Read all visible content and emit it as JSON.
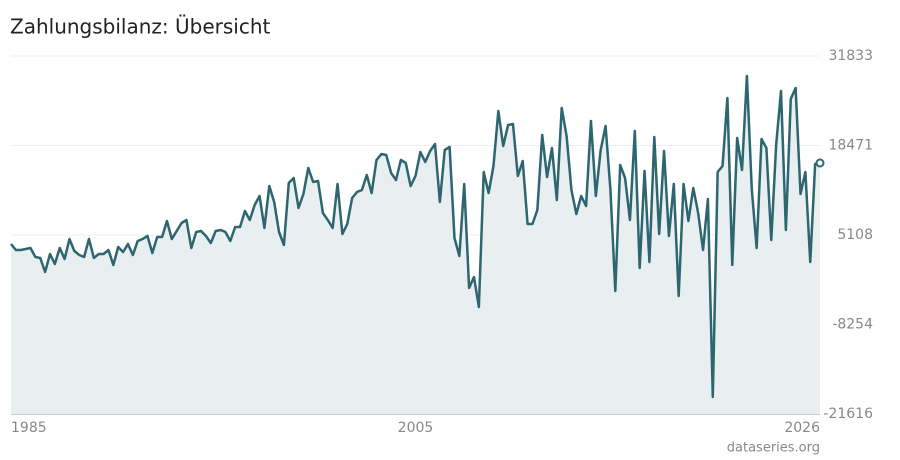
{
  "chart_data": {
    "type": "area",
    "title": "Zahlungsbilanz: Übersicht",
    "source": "dataseries.org",
    "color": "#2d6670",
    "fill": "#e9eff1",
    "grid": true,
    "ylim": [
      -21616,
      31833
    ],
    "yticks": [
      -21616,
      -8254,
      5108,
      18471,
      31833
    ],
    "categories": [
      "1985",
      null,
      null,
      null,
      null,
      null,
      null,
      null,
      null,
      null,
      null,
      null,
      null,
      null,
      null,
      null,
      null,
      null,
      null,
      null,
      null,
      null,
      null,
      null,
      null,
      null,
      null,
      null,
      null,
      null,
      null,
      null,
      null,
      null,
      null,
      null,
      null,
      null,
      null,
      null,
      null,
      null,
      null,
      null,
      null,
      null,
      null,
      null,
      null,
      null,
      null,
      null,
      null,
      null,
      null,
      null,
      null,
      null,
      null,
      null,
      null,
      null,
      null,
      null,
      null,
      null,
      null,
      null,
      null,
      null,
      null,
      null,
      null,
      null,
      null,
      null,
      null,
      null,
      null,
      null,
      null,
      null,
      null,
      "2005",
      null,
      null,
      null,
      null,
      null,
      null,
      null,
      null,
      null,
      null,
      null,
      null,
      null,
      null,
      null,
      null,
      null,
      null,
      null,
      null,
      null,
      null,
      null,
      null,
      null,
      null,
      null,
      null,
      null,
      null,
      null,
      null,
      null,
      null,
      null,
      null,
      null,
      null,
      null,
      null,
      null,
      null,
      null,
      null,
      null,
      null,
      null,
      null,
      null,
      null,
      null,
      null,
      null,
      null,
      null,
      null,
      null,
      null,
      null,
      null,
      null,
      null,
      null,
      null,
      null,
      null,
      null,
      null,
      null,
      null,
      null,
      null,
      null,
      null,
      null,
      null,
      null,
      null,
      null,
      null,
      null,
      null,
      "2026"
    ],
    "values": [
      3765,
      2869,
      2869,
      3018,
      3167,
      1824,
      1674,
      -416,
      2272,
      779,
      3167,
      1525,
      4511,
      2719,
      2122,
      1824,
      4511,
      1674,
      2272,
      2272,
      2869,
      629,
      3317,
      2570,
      3765,
      2122,
      4212,
      4511,
      4959,
      2421,
      4810,
      4810,
      7198,
      4511,
      5705,
      6900,
      7348,
      3167,
      5556,
      5705,
      4959,
      3914,
      5705,
      5855,
      5556,
      4212,
      6303,
      6303,
      8691,
      7348,
      9587,
      10931,
      6153,
      12424,
      10035,
      5556,
      3615,
      12872,
      13618,
      9139,
      11230,
      15111,
      13021,
      13170,
      8393,
      7348,
      6153,
      12723,
      5258,
      6751,
      10632,
      11528,
      11827,
      14066,
      11379,
      16306,
      17202,
      17052,
      14365,
      13320,
      16306,
      15858,
      12424,
      13917,
      17500,
      16007,
      17649,
      18695,
      10035,
      17799,
      18247,
      4660,
      1973,
      12723,
      -2805,
      -1162,
      -5641,
      14514,
      11379,
      15410,
      23621,
      18396,
      21531,
      21681,
      13917,
      16156,
      6751,
      6751,
      8841,
      20038,
      13768,
      18097,
      10334,
      24069,
      19889,
      11827,
      8244,
      10931,
      9438,
      22128,
      10931,
      17799,
      21382,
      11827,
      -3253,
      15559,
      13618,
      7348,
      20635,
      181,
      14663,
      1077,
      19740,
      5258,
      17649,
      4959,
      12723,
      -3999,
      12723,
      7198,
      12125,
      8393,
      2869,
      10483,
      -19078,
      14514,
      15410,
      25562,
      629,
      19590,
      14813,
      28847,
      11976,
      3167,
      19441,
      18097,
      4362,
      18545,
      26607,
      5855,
      25413,
      27055,
      11230,
      14514,
      1077,
      15709,
      15858
    ]
  }
}
